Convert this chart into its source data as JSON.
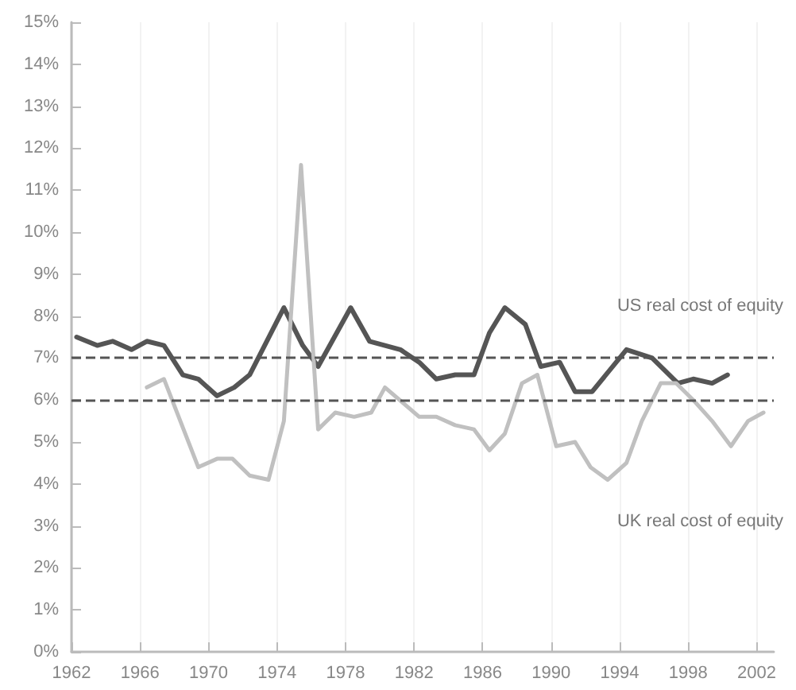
{
  "chart_data": {
    "type": "line",
    "legend": false,
    "grid": "x",
    "line_style": "solid",
    "marker": "none",
    "xlim": [
      1962,
      2003
    ],
    "xticks": [
      1962,
      1966,
      1970,
      1974,
      1978,
      1982,
      1986,
      1990,
      1994,
      1998,
      2002
    ],
    "ylim": [
      0,
      15
    ],
    "yticks": [
      {
        "value": 0,
        "label": "0%"
      },
      {
        "value": 1,
        "label": "1%"
      },
      {
        "value": 2,
        "label": "2%"
      },
      {
        "value": 3,
        "label": "3%"
      },
      {
        "value": 4,
        "label": "4%"
      },
      {
        "value": 5,
        "label": "5%"
      },
      {
        "value": 6,
        "label": "6%"
      },
      {
        "value": 7,
        "label": "7%"
      },
      {
        "value": 8,
        "label": "8%"
      },
      {
        "value": 9,
        "label": "9%"
      },
      {
        "value": 10,
        "label": "10%"
      },
      {
        "value": 11,
        "label": "11%"
      },
      {
        "value": 12,
        "label": "12%"
      },
      {
        "value": 13,
        "label": "13%"
      },
      {
        "value": 14,
        "label": "14%"
      },
      {
        "value": 15,
        "label": "15%"
      }
    ],
    "series": [
      {
        "name": "US real cost of equity",
        "color": "#555555",
        "x": [
          1962.3,
          1963.5,
          1964.4,
          1965.5,
          1966.4,
          1967.4,
          1968.5,
          1969.4,
          1970.5,
          1971.5,
          1972.4,
          1974.4,
          1975.5,
          1976.4,
          1978.3,
          1979.4,
          1981.2,
          1982.3,
          1983.3,
          1984.4,
          1985.5,
          1986.4,
          1987.3,
          1988.5,
          1989.4,
          1990.5,
          1991.4,
          1992.4,
          1994.4,
          1995.9,
          1997.4,
          1998.3,
          1999.4,
          2000.3
        ],
        "values": [
          7.5,
          7.3,
          7.4,
          7.2,
          7.4,
          7.3,
          6.6,
          6.5,
          6.1,
          6.3,
          6.6,
          8.2,
          7.3,
          6.8,
          8.2,
          7.4,
          7.2,
          6.9,
          6.5,
          6.6,
          6.6,
          7.6,
          8.2,
          7.8,
          6.8,
          6.9,
          6.2,
          6.2,
          7.2,
          7.0,
          6.4,
          6.5,
          6.4,
          6.6
        ]
      },
      {
        "name": "UK real cost of equity",
        "color": "#c0c0c0",
        "x": [
          1966.4,
          1967.4,
          1969.4,
          1970.5,
          1971.4,
          1972.4,
          1973.5,
          1974.4,
          1975.4,
          1976.4,
          1977.4,
          1978.5,
          1979.5,
          1980.3,
          1982.3,
          1983.3,
          1984.4,
          1985.5,
          1986.4,
          1987.3,
          1988.3,
          1989.2,
          1990.3,
          1991.4,
          1992.3,
          1993.3,
          1994.4,
          1995.3,
          1996.4,
          1997.3,
          1998.3,
          1999.4,
          2000.5,
          2001.5,
          2002.4
        ],
        "values": [
          6.3,
          6.5,
          4.4,
          4.6,
          4.6,
          4.2,
          4.1,
          5.5,
          11.6,
          5.3,
          5.7,
          5.6,
          5.7,
          6.3,
          5.6,
          5.6,
          5.4,
          5.3,
          4.8,
          5.2,
          6.4,
          6.6,
          4.9,
          5.0,
          4.4,
          4.1,
          4.5,
          5.5,
          6.4,
          6.4,
          6.0,
          5.5,
          4.9,
          5.5,
          5.7
        ]
      }
    ],
    "ref_lines": [
      {
        "axis": "y",
        "value": 7,
        "color": "#555555",
        "line_style": "dashed"
      },
      {
        "axis": "y",
        "value": 6,
        "color": "#555555",
        "line_style": "dashed"
      }
    ]
  }
}
